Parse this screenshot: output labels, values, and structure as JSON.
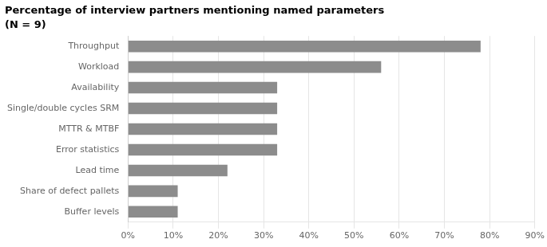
{
  "chart_data": {
    "type": "bar",
    "orientation": "horizontal",
    "title": "Percentage of interview partners mentioning named parameters",
    "subtitle": "(N = 9)",
    "categories": [
      "Throughput",
      "Workload",
      "Availability",
      "Single/double cycles SRM",
      "MTTR & MTBF",
      "Error statistics",
      "Lead time",
      "Share of defect pallets",
      "Buffer levels"
    ],
    "values": [
      0.78,
      0.56,
      0.33,
      0.33,
      0.33,
      0.33,
      0.22,
      0.11,
      0.11
    ],
    "color": "#8c8c8c",
    "xlim": [
      0,
      0.9
    ],
    "xticks": [
      {
        "value": 0.0,
        "label": "0%"
      },
      {
        "value": 0.1,
        "label": "10%"
      },
      {
        "value": 0.2,
        "label": "20%"
      },
      {
        "value": 0.3,
        "label": "30%"
      },
      {
        "value": 0.4,
        "label": "40%"
      },
      {
        "value": 0.5,
        "label": "50%"
      },
      {
        "value": 0.6,
        "label": "60%"
      },
      {
        "value": 0.7,
        "label": "70%"
      },
      {
        "value": 0.8,
        "label": "80%"
      },
      {
        "value": 0.9,
        "label": "90%"
      }
    ],
    "grid": true
  }
}
